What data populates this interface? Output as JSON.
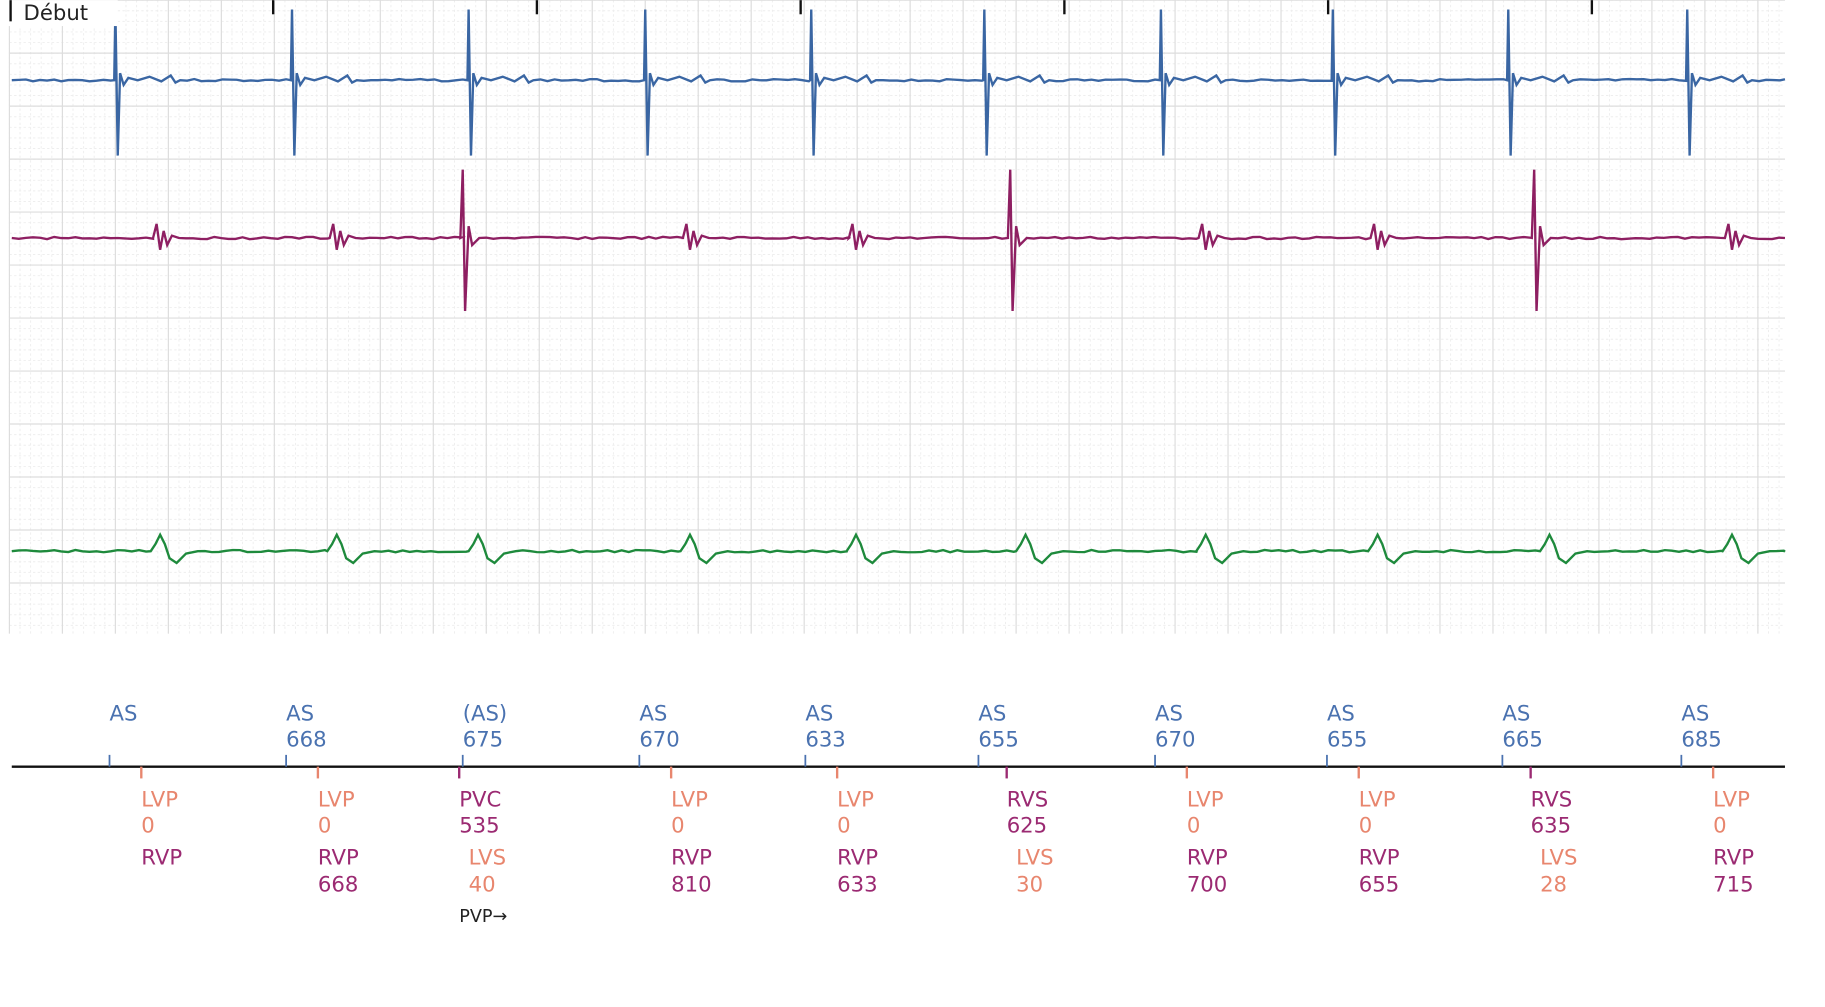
{
  "header": {
    "label": "Début"
  },
  "annotation": "PVP→",
  "atrial_markers": [
    {
      "label": "AS",
      "color": "#4a72b0"
    },
    {
      "label": "AS",
      "value": 668,
      "color": "#4a72b0"
    },
    {
      "label": "(AS)",
      "value": 675,
      "color": "#4a72b0"
    },
    {
      "label": "AS",
      "value": 670,
      "color": "#4a72b0"
    },
    {
      "label": "AS",
      "value": 633,
      "color": "#4a72b0"
    },
    {
      "label": "AS",
      "value": 655,
      "color": "#4a72b0"
    },
    {
      "label": "AS",
      "value": 670,
      "color": "#4a72b0"
    },
    {
      "label": "AS",
      "value": 655,
      "color": "#4a72b0"
    },
    {
      "label": "AS",
      "value": 665,
      "color": "#4a72b0"
    },
    {
      "label": "AS",
      "value": 685,
      "color": "#4a72b0"
    }
  ],
  "ventricular_markers": [
    {
      "top": {
        "label": "LVP",
        "value": 0,
        "color": "#e8866e"
      },
      "bottom": {
        "label": "RVP",
        "color": "#9b2a72"
      }
    },
    {
      "top": {
        "label": "LVP",
        "value": 0,
        "color": "#e8866e"
      },
      "bottom": {
        "label": "RVP",
        "value": 668,
        "color": "#9b2a72"
      }
    },
    {
      "top": {
        "label": "PVC",
        "value": 535,
        "color": "#9b2a72"
      },
      "bottom": {
        "label": "LVS",
        "value": 40,
        "color": "#e8866e"
      }
    },
    {
      "top": {
        "label": "LVP",
        "value": 0,
        "color": "#e8866e"
      },
      "bottom": {
        "label": "RVP",
        "value": 810,
        "color": "#9b2a72"
      }
    },
    {
      "top": {
        "label": "LVP",
        "value": 0,
        "color": "#e8866e"
      },
      "bottom": {
        "label": "RVP",
        "value": 633,
        "color": "#9b2a72"
      }
    },
    {
      "top": {
        "label": "RVS",
        "value": 625,
        "color": "#9b2a72"
      },
      "bottom": {
        "label": "LVS",
        "value": 30,
        "color": "#e8866e"
      }
    },
    {
      "top": {
        "label": "LVP",
        "value": 0,
        "color": "#e8866e"
      },
      "bottom": {
        "label": "RVP",
        "value": 700,
        "color": "#9b2a72"
      }
    },
    {
      "top": {
        "label": "LVP",
        "value": 0,
        "color": "#e8866e"
      },
      "bottom": {
        "label": "RVP",
        "value": 655,
        "color": "#9b2a72"
      }
    },
    {
      "top": {
        "label": "RVS",
        "value": 635,
        "color": "#9b2a72"
      },
      "bottom": {
        "label": "LVS",
        "value": 28,
        "color": "#e8866e"
      }
    },
    {
      "top": {
        "label": "LVP",
        "value": 0,
        "color": "#e8866e"
      },
      "bottom": {
        "label": "RVP",
        "value": 715,
        "color": "#9b2a72"
      }
    }
  ]
}
